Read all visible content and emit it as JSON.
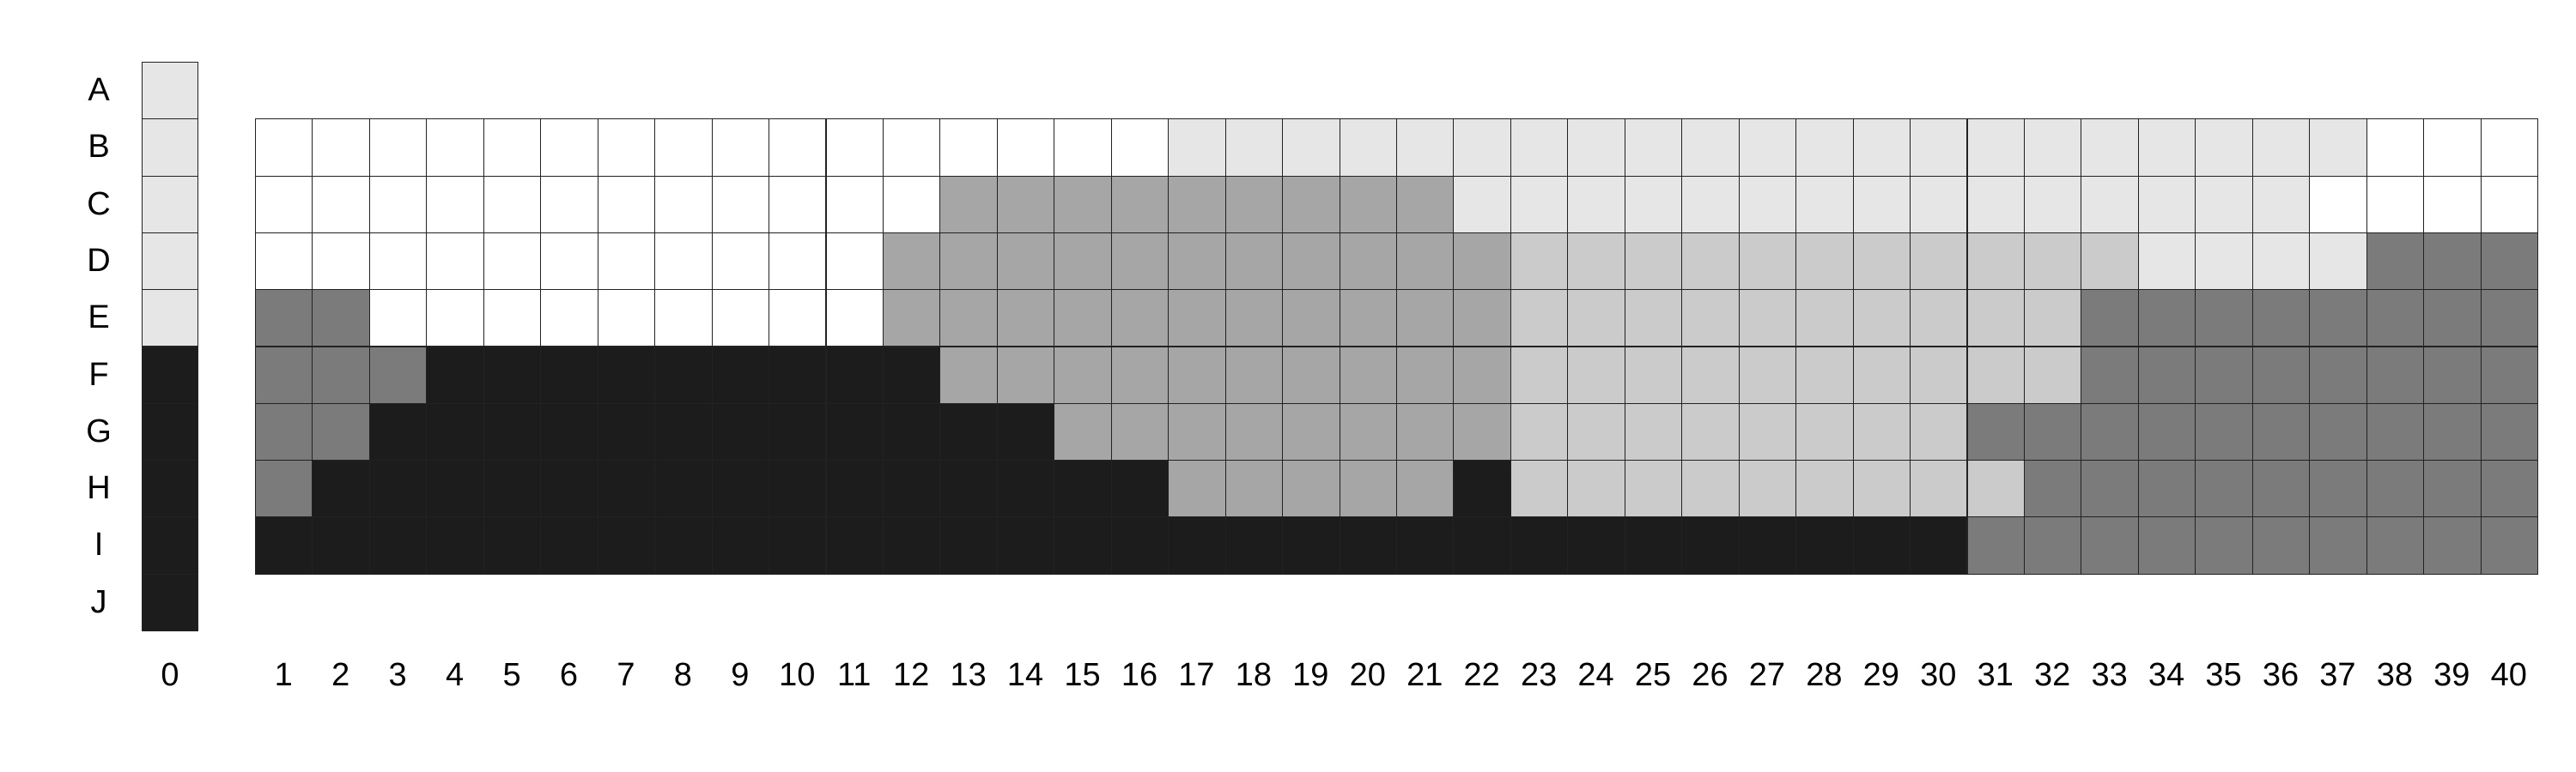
{
  "palette": {
    "w": "#ffffff",
    "l": "#e6e6e6",
    "c": "#cbcbcb",
    "m": "#a6a6a6",
    "d": "#7b7b7b",
    "k": "#1c1c1c"
  },
  "row_labels": [
    "A",
    "B",
    "C",
    "D",
    "E",
    "F",
    "G",
    "H",
    "I",
    "J"
  ],
  "col_labels": [
    "0",
    "1",
    "2",
    "3",
    "4",
    "5",
    "6",
    "7",
    "8",
    "9",
    "10",
    "11",
    "12",
    "13",
    "14",
    "15",
    "16",
    "17",
    "18",
    "19",
    "20",
    "21",
    "22",
    "23",
    "24",
    "25",
    "26",
    "27",
    "28",
    "29",
    "30",
    "31",
    "32",
    "33",
    "34",
    "35",
    "36",
    "37",
    "38",
    "39",
    "40"
  ],
  "reference_column": [
    "l",
    "l",
    "l",
    "l",
    "l",
    "k",
    "k",
    "k",
    "k",
    "k"
  ],
  "main_row_labels": [
    "B",
    "C",
    "D",
    "E",
    "F",
    "G",
    "H",
    "I"
  ],
  "main_grid": [
    "wwwwwwwwwwwwwwwwlllllllllllllllllllllwwwww",
    "wwwwwwwwwwwwmmmmmmmmmlllllllllllllllwwwww",
    "wwwwwwwwwwwmmmmmmmmmmmcccccccccccllllddddww",
    "ddwwwwwwwwwmmmmmmmmmmmccccccccccdddddddddd",
    "dddkkkkkkkkkmmmmmmmmmmccccccccccdddddddddd",
    "ddkkkkkkkkkkkkmmmmmmmmccccccccddddddddddd",
    "dkkkkkkkkkkkkkkkmmmmmkcccccccccddddddddddd",
    "kkkkkkkkkkkkkkkkkkkkkkkkkkkkkkddddddddddd"
  ]
}
